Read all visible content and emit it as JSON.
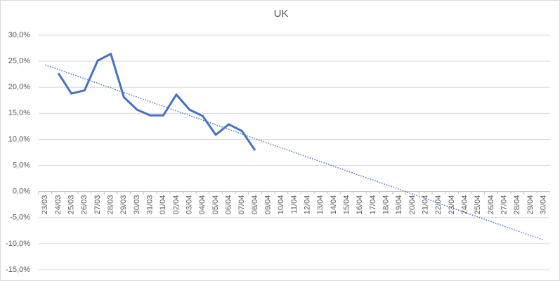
{
  "chart_data": {
    "type": "line",
    "title": "UK",
    "categories": [
      "23/03",
      "24/03",
      "25/03",
      "26/03",
      "27/03",
      "28/03",
      "29/03",
      "30/03",
      "31/03",
      "01/04",
      "02/04",
      "03/04",
      "04/04",
      "05/04",
      "06/04",
      "07/04",
      "08/04",
      "09/04",
      "10/04",
      "11/04",
      "12/04",
      "13/04",
      "14/04",
      "15/04",
      "16/04",
      "17/04",
      "18/04",
      "19/04",
      "20/04",
      "21/04",
      "22/04",
      "23/04",
      "24/04",
      "25/04",
      "26/04",
      "27/04",
      "28/04",
      "29/04",
      "30/04"
    ],
    "series": [
      {
        "color": "#4472c4",
        "values": [
          null,
          22.7,
          18.8,
          19.4,
          25.1,
          26.4,
          18.1,
          15.7,
          14.6,
          14.6,
          18.6,
          15.7,
          14.5,
          10.9,
          12.9,
          11.6,
          7.9,
          null,
          null,
          null,
          null,
          null,
          null,
          null,
          null,
          null,
          null,
          null,
          null,
          null,
          null,
          null,
          null,
          null,
          null,
          null,
          null,
          null,
          null
        ]
      }
    ],
    "trendline": {
      "color": "#4472c4",
      "start": 24.3,
      "end": -9.3
    },
    "ylim": [
      -15,
      30
    ],
    "yticks": [
      {
        "value": -15,
        "label": "-15,0%"
      },
      {
        "value": -10,
        "label": "-10,0%"
      },
      {
        "value": -5,
        "label": "-5,0%"
      },
      {
        "value": 0,
        "label": "0,0%"
      },
      {
        "value": 5,
        "label": "5,0%"
      },
      {
        "value": 10,
        "label": "10,0%"
      },
      {
        "value": 15,
        "label": "15,0%"
      },
      {
        "value": 20,
        "label": "20,0%"
      },
      {
        "value": 25,
        "label": "25,0%"
      },
      {
        "value": 30,
        "label": "30,0%"
      }
    ],
    "grid": true
  }
}
